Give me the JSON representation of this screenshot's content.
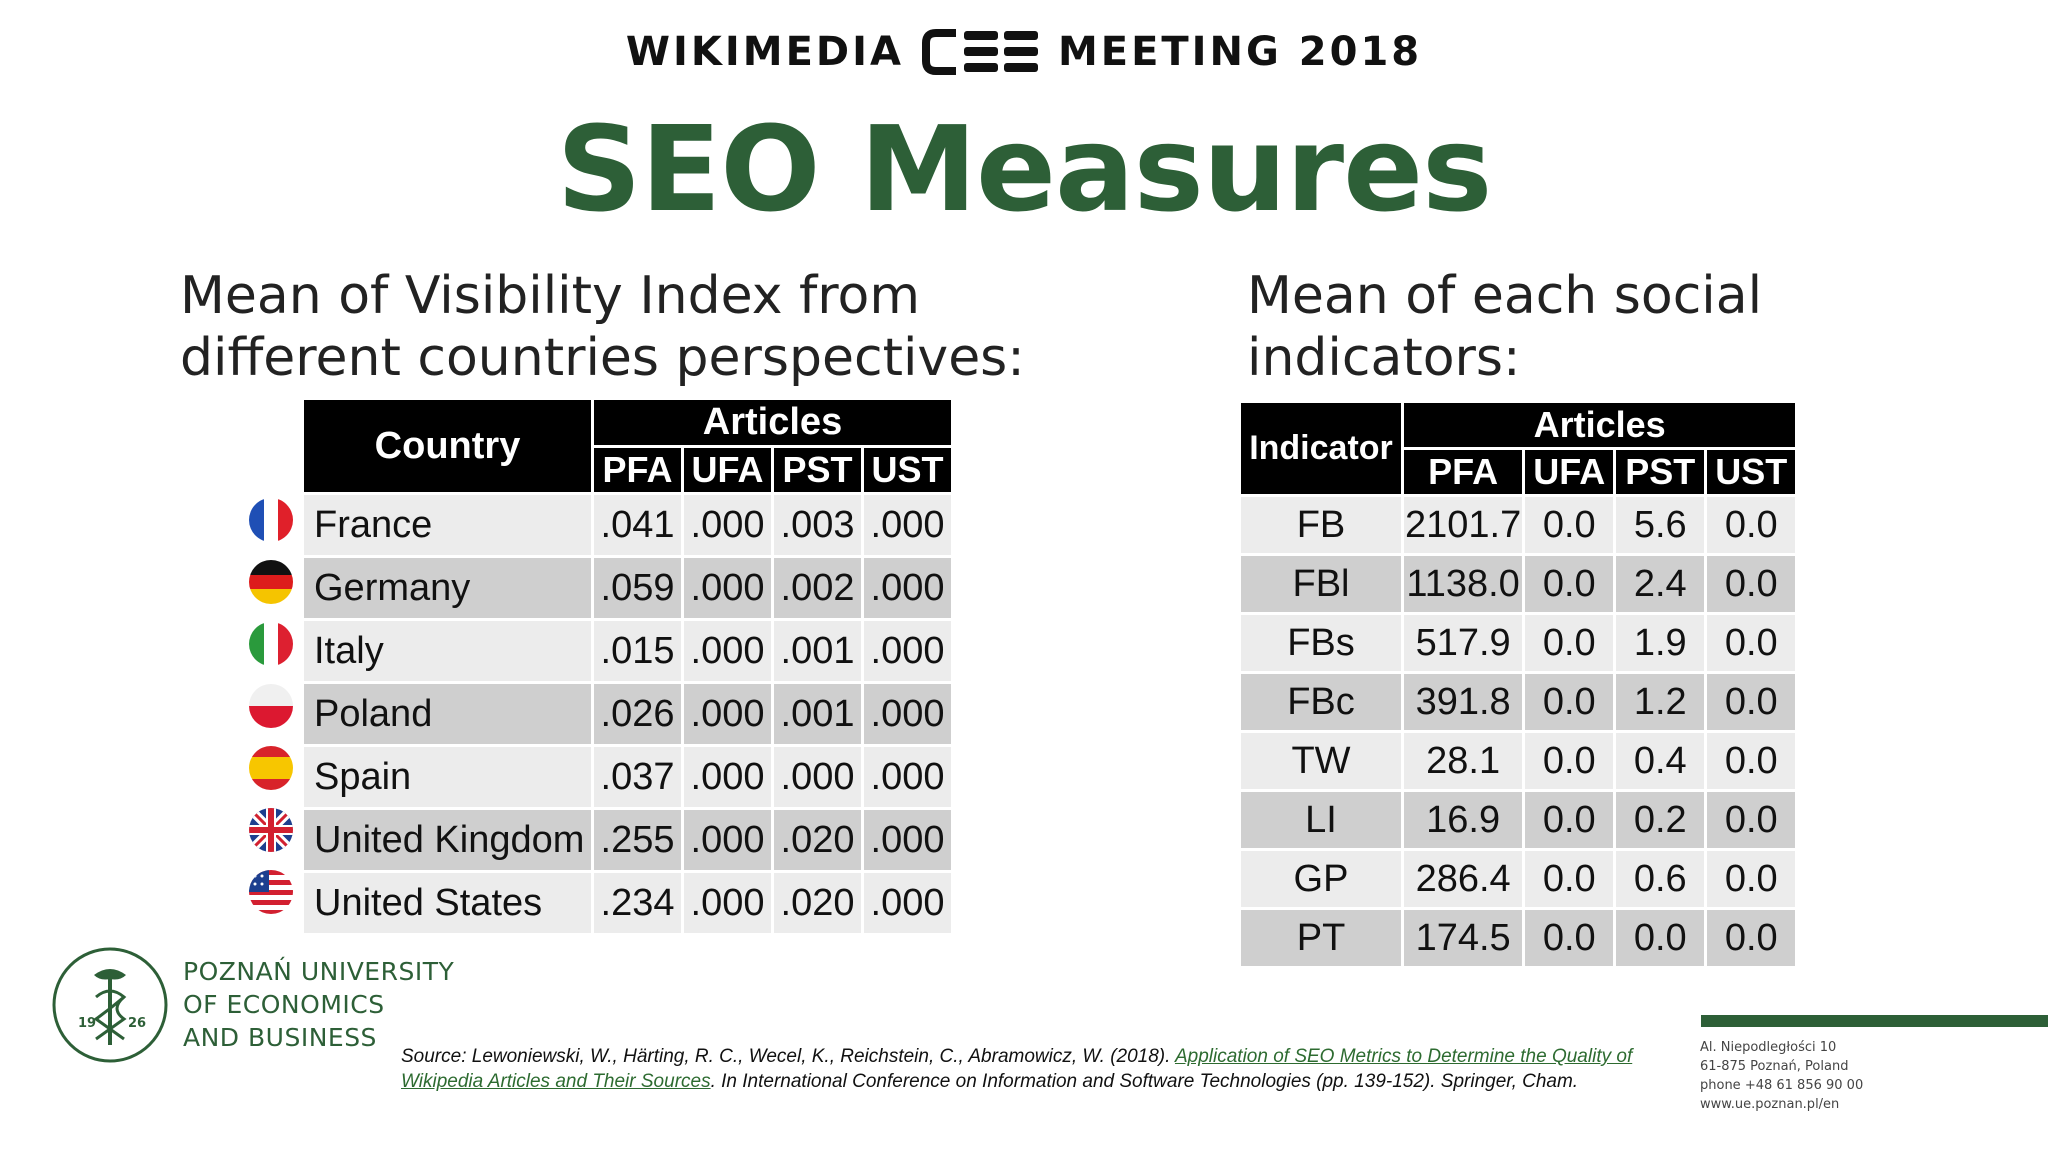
{
  "header": {
    "left_word": "WIKIMEDIA",
    "logo_text": "CEE",
    "right_word": "MEETING 2018"
  },
  "title": "SEO Measures",
  "left": {
    "subtitle_line1": "Mean of Visibility Index from",
    "subtitle_line2": "different countries perspectives:",
    "table": {
      "country_header": "Country",
      "group_header": "Articles",
      "columns": [
        "PFA",
        "UFA",
        "PST",
        "UST"
      ],
      "rows": [
        {
          "flag": "france-flag-icon",
          "country": "France",
          "values": [
            ".041",
            ".000",
            ".003",
            ".000"
          ]
        },
        {
          "flag": "germany-flag-icon",
          "country": "Germany",
          "values": [
            ".059",
            ".000",
            ".002",
            ".000"
          ]
        },
        {
          "flag": "italy-flag-icon",
          "country": "Italy",
          "values": [
            ".015",
            ".000",
            ".001",
            ".000"
          ]
        },
        {
          "flag": "poland-flag-icon",
          "country": "Poland",
          "values": [
            ".026",
            ".000",
            ".001",
            ".000"
          ]
        },
        {
          "flag": "spain-flag-icon",
          "country": "Spain",
          "values": [
            ".037",
            ".000",
            ".000",
            ".000"
          ]
        },
        {
          "flag": "uk-flag-icon",
          "country": "United Kingdom",
          "values": [
            ".255",
            ".000",
            ".020",
            ".000"
          ]
        },
        {
          "flag": "us-flag-icon",
          "country": "United States",
          "values": [
            ".234",
            ".000",
            ".020",
            ".000"
          ]
        }
      ]
    }
  },
  "right": {
    "subtitle_line1": "Mean of each social",
    "subtitle_line2": "indicators:",
    "table": {
      "indicator_header": "Indicator",
      "group_header": "Articles",
      "columns": [
        "PFA",
        "UFA",
        "PST",
        "UST"
      ],
      "rows": [
        {
          "indicator": "FB",
          "values": [
            "2101.7",
            "0.0",
            "5.6",
            "0.0"
          ]
        },
        {
          "indicator": "FBl",
          "values": [
            "1138.0",
            "0.0",
            "2.4",
            "0.0"
          ]
        },
        {
          "indicator": "FBs",
          "values": [
            "517.9",
            "0.0",
            "1.9",
            "0.0"
          ]
        },
        {
          "indicator": "FBc",
          "values": [
            "391.8",
            "0.0",
            "1.2",
            "0.0"
          ]
        },
        {
          "indicator": "TW",
          "values": [
            "28.1",
            "0.0",
            "0.4",
            "0.0"
          ]
        },
        {
          "indicator": "LI",
          "values": [
            "16.9",
            "0.0",
            "0.2",
            "0.0"
          ]
        },
        {
          "indicator": "GP",
          "values": [
            "286.4",
            "0.0",
            "0.6",
            "0.0"
          ]
        },
        {
          "indicator": "PT",
          "values": [
            "174.5",
            "0.0",
            "0.0",
            "0.0"
          ]
        }
      ]
    }
  },
  "university": {
    "line1": "POZNAŃ UNIVERSITY",
    "line2": "OF ECONOMICS",
    "line3": "AND BUSINESS",
    "year_left": "19",
    "year_right": "26"
  },
  "source": {
    "prefix": "Source: Lewoniewski, W., Härting, R. C., Wecel, K., Reichstein, C., Abramowicz, W. (2018). ",
    "link_text": "Application of SEO Metrics to Determine the Quality of Wikipedia Articles and Their Sources",
    "suffix": ". In International Conference on Information and Software Technologies (pp. 139-152). Springer, Cham."
  },
  "address": {
    "line1": "Al. Niepodległości 10",
    "line2": "61-875 Poznań, Poland",
    "line3": "phone +48 61 856 90 00",
    "line4": "www.ue.poznan.pl/en"
  },
  "colors": {
    "brand_green": "#2d5f37",
    "header_black": "#000000",
    "row_light": "#ececec",
    "row_dark": "#cfcfcf"
  }
}
